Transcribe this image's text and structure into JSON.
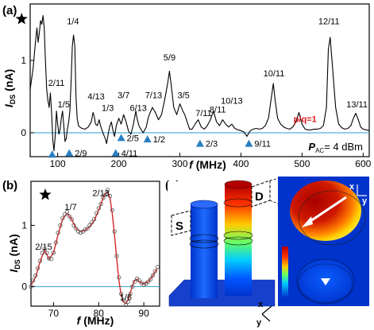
{
  "panels": {
    "a": "(a)",
    "b": "(b)",
    "c": "(c)"
  },
  "colors": {
    "trace_a": "#000000",
    "fit_b": "#d62728",
    "data_b": "#555555",
    "zero_line": "#2a9fd6",
    "triangle": "#2a7fc0",
    "highlight_text": "#e41a1c",
    "sim_hot": "#b30000",
    "sim_cold": "#0033cc"
  },
  "chart_data": [
    {
      "type": "line",
      "id": "a",
      "xlabel": "f (MHz)",
      "ylabel": "I_DS (nA)",
      "xlim": [
        55,
        610
      ],
      "ylim": [
        -0.33,
        1.78
      ],
      "xticks": [
        100,
        200,
        300,
        400,
        500,
        600
      ],
      "yticks": [
        0,
        1
      ],
      "zero_line": true,
      "power_label": "P_AC= 4 dBm",
      "star_at_mhz": 67,
      "x": [
        55,
        60,
        63,
        66,
        68,
        70,
        72,
        74,
        76,
        78,
        80,
        82,
        84,
        86,
        88,
        90,
        92,
        94,
        96,
        98,
        100,
        102,
        104,
        106,
        108,
        110,
        112,
        114,
        116,
        118,
        120,
        122,
        124,
        126,
        128,
        130,
        132,
        134,
        136,
        140,
        145,
        150,
        155,
        158,
        160,
        162,
        165,
        168,
        170,
        172,
        175,
        178,
        180,
        182,
        185,
        188,
        190,
        193,
        196,
        200,
        204,
        208,
        212,
        216,
        220,
        224,
        228,
        230,
        233,
        236,
        240,
        245,
        248,
        250,
        255,
        260,
        265,
        270,
        275,
        280,
        283,
        286,
        290,
        295,
        300,
        305,
        308,
        312,
        316,
        320,
        325,
        330,
        335,
        340,
        345,
        350,
        355,
        360,
        365,
        370,
        375,
        380,
        385,
        390,
        395,
        400,
        405,
        410,
        413,
        416,
        420,
        425,
        430,
        435,
        440,
        445,
        450,
        453,
        456,
        460,
        465,
        470,
        475,
        480,
        485,
        490,
        495,
        500,
        505,
        510,
        515,
        520,
        525,
        530,
        535,
        540,
        543,
        546,
        550,
        555,
        560,
        565,
        570,
        575,
        580,
        584,
        588,
        592,
        596,
        600,
        605,
        610
      ],
      "y": [
        0.6,
        0.9,
        1.2,
        1.45,
        1.25,
        1.38,
        1.55,
        1.5,
        1.62,
        1.45,
        1.0,
        0.6,
        0.45,
        0.35,
        0.55,
        0.3,
        -0.1,
        -0.25,
        -0.05,
        0.3,
        0.12,
        -0.02,
        0.05,
        0.2,
        0.3,
        0.1,
        -0.12,
        -0.08,
        0.05,
        0.15,
        0.3,
        0.7,
        1.2,
        1.35,
        1.2,
        0.5,
        0.2,
        0.1,
        0.08,
        0.06,
        0.05,
        0.08,
        0.15,
        0.28,
        0.22,
        0.12,
        0.1,
        0.18,
        0.1,
        0.05,
        -0.02,
        -0.08,
        -0.15,
        -0.05,
        0.08,
        0.15,
        0.05,
        -0.05,
        0.1,
        0.2,
        0.12,
        0.25,
        0.15,
        0.02,
        -0.02,
        0.12,
        0.3,
        0.2,
        0.1,
        0.05,
        0.0,
        0.08,
        0.2,
        0.25,
        0.35,
        0.28,
        0.18,
        0.25,
        0.45,
        0.68,
        0.85,
        0.65,
        0.35,
        0.25,
        0.4,
        0.3,
        0.25,
        0.15,
        0.05,
        0.05,
        0.12,
        0.18,
        0.08,
        0.05,
        0.1,
        0.18,
        0.3,
        0.15,
        0.1,
        0.18,
        0.12,
        0.08,
        0.12,
        0.06,
        0.04,
        0.03,
        0.01,
        -0.05,
        0.0,
        0.03,
        0.05,
        0.06,
        0.05,
        0.06,
        0.1,
        0.2,
        0.5,
        0.68,
        0.45,
        0.2,
        0.12,
        0.08,
        0.06,
        0.05,
        0.08,
        0.15,
        0.28,
        0.12,
        0.05,
        0.04,
        0.04,
        0.05,
        0.05,
        0.06,
        0.1,
        0.35,
        1.15,
        1.32,
        0.9,
        0.35,
        0.12,
        0.07,
        0.05,
        0.06,
        0.1,
        0.2,
        0.27,
        0.18,
        0.08,
        0.05,
        0.04,
        0.03
      ],
      "annotations": [
        {
          "text": "1/4",
          "x": 125,
          "y": 1.5
        },
        {
          "text": "2/11",
          "x": 98,
          "y": 0.65
        },
        {
          "text": "1/5",
          "x": 110,
          "y": 0.35
        },
        {
          "text": "4/13",
          "x": 163,
          "y": 0.46
        },
        {
          "text": "1/3",
          "x": 182,
          "y": 0.3
        },
        {
          "text": "3/7",
          "x": 208,
          "y": 0.48
        },
        {
          "text": "6/13",
          "x": 232,
          "y": 0.3
        },
        {
          "text": "7/13",
          "x": 257,
          "y": 0.48
        },
        {
          "text": "5/9",
          "x": 283,
          "y": 1.0
        },
        {
          "text": "3/5",
          "x": 306,
          "y": 0.48
        },
        {
          "text": "7/11",
          "x": 339,
          "y": 0.23
        },
        {
          "text": "8/11",
          "x": 362,
          "y": 0.28
        },
        {
          "text": "10/13",
          "x": 385,
          "y": 0.4
        },
        {
          "text": "10/11",
          "x": 454,
          "y": 0.78
        },
        {
          "text": "p/q=1",
          "x": 505,
          "y": 0.15,
          "highlight": true
        },
        {
          "text": "12/11",
          "x": 544,
          "y": 1.5
        },
        {
          "text": "13/11",
          "x": 590,
          "y": 0.35
        }
      ],
      "markers": [
        {
          "text": "2/5",
          "x": 204,
          "y": -0.07
        },
        {
          "text": "1/2",
          "x": 247,
          "y": -0.09
        },
        {
          "text": "2/3",
          "x": 333,
          "y": -0.15
        },
        {
          "text": "9/11",
          "x": 413,
          "y": -0.15
        },
        {
          "text": "2/9",
          "x": 119,
          "y": -0.28
        },
        {
          "text": "4/11",
          "x": 195,
          "y": -0.28
        },
        {
          "text": "",
          "x": 91,
          "y": -0.3
        }
      ]
    },
    {
      "type": "scatter",
      "id": "b",
      "xlabel": "f (MHz)",
      "ylabel": "I_DS (nA)",
      "xlim": [
        65,
        93.5
      ],
      "ylim": [
        -0.32,
        1.72
      ],
      "xticks": [
        70,
        80,
        90
      ],
      "yticks": [
        0,
        1
      ],
      "zero_line": true,
      "star": true,
      "annotations": [
        {
          "text": "2/15",
          "x": 67.8,
          "y": 0.6
        },
        {
          "text": "1/7",
          "x": 73.8,
          "y": 1.25
        },
        {
          "text": "2/13",
          "x": 80.5,
          "y": 1.48
        },
        {
          "text": "1/6",
          "x": 86.0,
          "y": -0.22
        }
      ],
      "series": [
        {
          "kind": "fit",
          "x": [
            65,
            66,
            67,
            68,
            69,
            70,
            71,
            72,
            73,
            74,
            75,
            76,
            77,
            78,
            79,
            80,
            80.5,
            81,
            81.5,
            82,
            82.5,
            83,
            83.5,
            84,
            84.5,
            85,
            85.5,
            86,
            86.5,
            87,
            87.5,
            88,
            88.5,
            89,
            90,
            91,
            92,
            93
          ],
          "y": [
            0.02,
            0.15,
            0.4,
            0.6,
            0.45,
            0.55,
            0.85,
            1.1,
            1.2,
            1.1,
            0.95,
            0.9,
            0.92,
            0.98,
            1.08,
            1.25,
            1.35,
            1.45,
            1.52,
            1.55,
            1.45,
            1.2,
            0.85,
            0.45,
            0.1,
            -0.15,
            -0.25,
            -0.28,
            -0.22,
            -0.1,
            0.02,
            0.1,
            0.12,
            0.08,
            0.04,
            0.08,
            0.18,
            0.3
          ]
        },
        {
          "kind": "points",
          "x": [
            65,
            65.5,
            66,
            66.5,
            67,
            67.5,
            68,
            68.5,
            69,
            69.5,
            70,
            70.5,
            71,
            71.5,
            72,
            72.5,
            73,
            73.5,
            74,
            74.5,
            75,
            75.5,
            76,
            76.5,
            77,
            77.5,
            78,
            78.5,
            79,
            79.5,
            80,
            80.5,
            81,
            81.5,
            82,
            82.5,
            83,
            83.5,
            84,
            84.5,
            85,
            85.5,
            86,
            86.5,
            87,
            87.5,
            88,
            88.5,
            89,
            89.5,
            90,
            90.5,
            91,
            91.5,
            92,
            92.5,
            93
          ],
          "y": [
            0.0,
            0.1,
            0.18,
            0.3,
            0.42,
            0.55,
            0.62,
            0.55,
            0.46,
            0.45,
            0.55,
            0.72,
            0.88,
            1.0,
            1.12,
            1.18,
            1.22,
            1.15,
            1.1,
            1.0,
            0.95,
            0.9,
            0.88,
            0.9,
            0.93,
            0.95,
            1.0,
            1.05,
            1.1,
            1.2,
            1.28,
            1.35,
            1.45,
            1.5,
            1.58,
            1.48,
            1.25,
            0.9,
            0.5,
            0.15,
            -0.12,
            -0.22,
            -0.3,
            -0.25,
            -0.12,
            0.0,
            0.08,
            0.13,
            0.1,
            0.06,
            0.03,
            0.05,
            0.08,
            0.12,
            0.18,
            0.25,
            0.32
          ]
        }
      ]
    }
  ],
  "panel_c": {
    "label_S": "S",
    "label_D": "D",
    "axis_x": "x",
    "axis_y": "y"
  }
}
